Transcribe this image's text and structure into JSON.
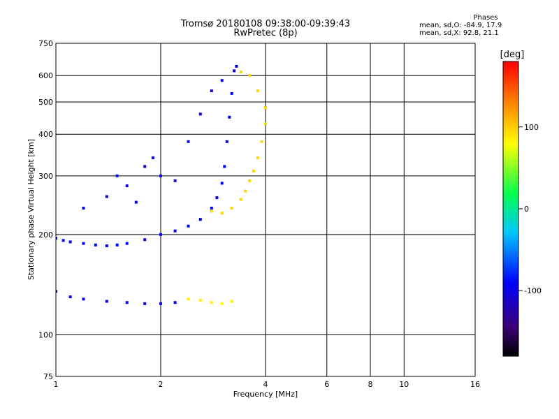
{
  "title_line1": "Tromsø 20180108 09:38:00-09:39:43",
  "title_line2": "RwPretec (8p)",
  "phase_box": {
    "heading": "Phases",
    "line_o": "mean, sd,O: -84.9, 17.9",
    "line_x": "mean, sd,X:  92.8, 21.1"
  },
  "colorbar": {
    "label": "[deg]",
    "ticks": [
      "100",
      "0",
      "-100"
    ],
    "range": [
      -180,
      180
    ]
  },
  "chart_data": {
    "type": "scatter",
    "xlabel": "Frequency [MHz]",
    "ylabel": "Stationary phase Virtual Height [km]",
    "xscale": "log",
    "yscale": "log",
    "xlim": [
      1,
      16
    ],
    "ylim": [
      75,
      750
    ],
    "xticks": [
      "1",
      "2",
      "4",
      "6",
      "8",
      "10",
      "16"
    ],
    "yticks": [
      "750",
      "600",
      "500",
      "400",
      "300",
      "200",
      "100",
      "75"
    ],
    "grid": true,
    "series": [
      {
        "trace": "o_trace_lower",
        "color_phase": -90,
        "points": [
          [
            1.0,
            195
          ],
          [
            1.05,
            192
          ],
          [
            1.1,
            190
          ],
          [
            1.2,
            188
          ],
          [
            1.3,
            186
          ],
          [
            1.4,
            185
          ],
          [
            1.5,
            186
          ],
          [
            1.6,
            188
          ],
          [
            1.8,
            193
          ],
          [
            2.0,
            200
          ],
          [
            2.2,
            205
          ],
          [
            2.4,
            212
          ],
          [
            2.6,
            222
          ],
          [
            2.8,
            240
          ],
          [
            2.9,
            258
          ],
          [
            3.0,
            285
          ],
          [
            3.05,
            320
          ],
          [
            3.1,
            380
          ],
          [
            3.15,
            450
          ],
          [
            3.2,
            530
          ],
          [
            3.25,
            620
          ],
          [
            3.3,
            640
          ]
        ]
      },
      {
        "trace": "o_trace_spread",
        "color_phase": -100,
        "points": [
          [
            1.2,
            240
          ],
          [
            1.4,
            260
          ],
          [
            1.5,
            300
          ],
          [
            1.6,
            280
          ],
          [
            1.7,
            250
          ],
          [
            1.8,
            320
          ],
          [
            1.9,
            340
          ],
          [
            2.0,
            300
          ],
          [
            2.2,
            290
          ],
          [
            2.4,
            380
          ],
          [
            2.6,
            460
          ],
          [
            2.8,
            540
          ],
          [
            3.0,
            580
          ]
        ]
      },
      {
        "trace": "x_trace",
        "color_phase": 95,
        "points": [
          [
            2.8,
            235
          ],
          [
            3.0,
            232
          ],
          [
            3.2,
            240
          ],
          [
            3.4,
            255
          ],
          [
            3.5,
            270
          ],
          [
            3.6,
            290
          ],
          [
            3.7,
            310
          ],
          [
            3.8,
            340
          ],
          [
            3.9,
            380
          ],
          [
            4.0,
            430
          ],
          [
            4.0,
            480
          ],
          [
            3.8,
            540
          ],
          [
            3.6,
            600
          ],
          [
            3.4,
            615
          ]
        ]
      },
      {
        "trace": "e_layer_o",
        "color_phase": -95,
        "points": [
          [
            1.0,
            135
          ],
          [
            1.1,
            130
          ],
          [
            1.2,
            128
          ],
          [
            1.4,
            126
          ],
          [
            1.6,
            125
          ],
          [
            1.8,
            124
          ],
          [
            2.0,
            124
          ],
          [
            2.2,
            125
          ]
        ]
      },
      {
        "trace": "e_layer_x",
        "color_phase": 85,
        "points": [
          [
            2.4,
            128
          ],
          [
            2.6,
            127
          ],
          [
            2.8,
            125
          ],
          [
            3.0,
            124
          ],
          [
            3.2,
            126
          ]
        ]
      }
    ]
  }
}
